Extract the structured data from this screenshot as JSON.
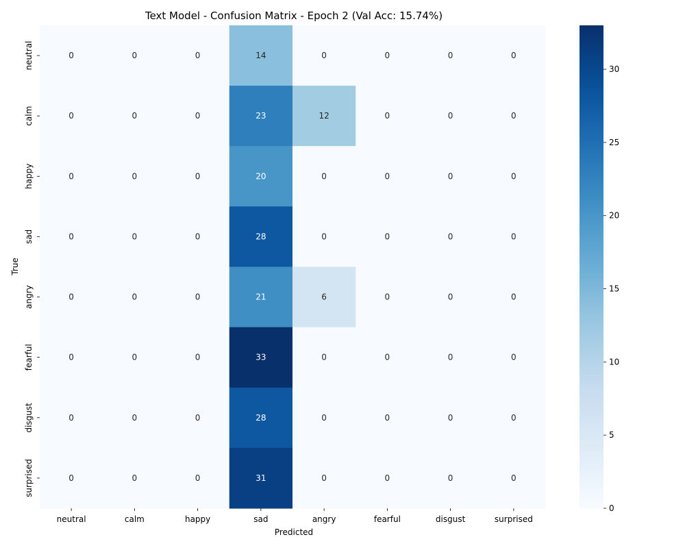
{
  "chart_data": {
    "type": "heatmap",
    "title": "Text Model - Confusion Matrix - Epoch 2 (Val Acc: 15.74%)",
    "xlabel": "Predicted",
    "ylabel": "True",
    "x_categories": [
      "neutral",
      "calm",
      "happy",
      "sad",
      "angry",
      "fearful",
      "disgust",
      "surprised"
    ],
    "y_categories": [
      "neutral",
      "calm",
      "happy",
      "sad",
      "angry",
      "fearful",
      "disgust",
      "surprised"
    ],
    "values": [
      [
        0,
        0,
        0,
        14,
        0,
        0,
        0,
        0
      ],
      [
        0,
        0,
        0,
        23,
        12,
        0,
        0,
        0
      ],
      [
        0,
        0,
        0,
        20,
        0,
        0,
        0,
        0
      ],
      [
        0,
        0,
        0,
        28,
        0,
        0,
        0,
        0
      ],
      [
        0,
        0,
        0,
        21,
        6,
        0,
        0,
        0
      ],
      [
        0,
        0,
        0,
        33,
        0,
        0,
        0,
        0
      ],
      [
        0,
        0,
        0,
        28,
        0,
        0,
        0,
        0
      ],
      [
        0,
        0,
        0,
        31,
        0,
        0,
        0,
        0
      ]
    ],
    "colorscale": "Blues",
    "vmin": 0,
    "vmax": 33,
    "colorbar_ticks": [
      0,
      5,
      10,
      15,
      20,
      25,
      30
    ]
  }
}
